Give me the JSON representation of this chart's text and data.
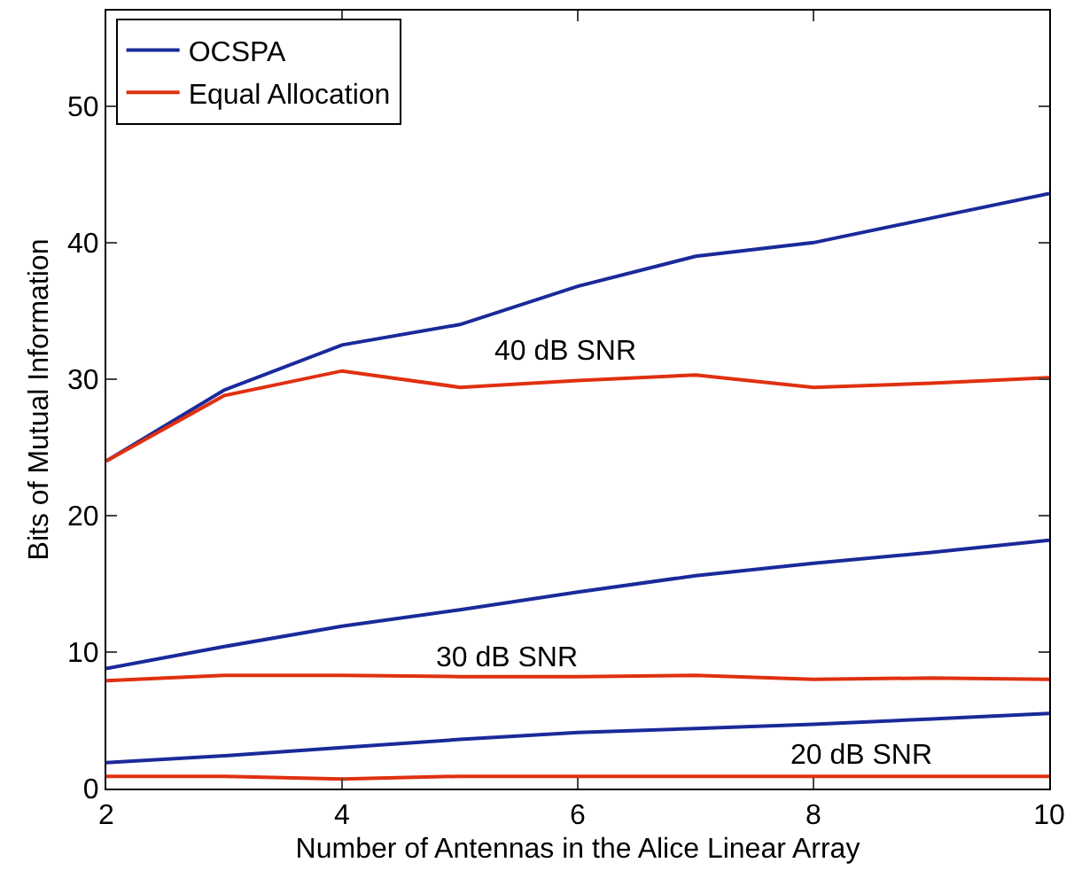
{
  "chart_data": {
    "type": "line",
    "xlabel": "Number of Antennas in the Alice Linear Array",
    "ylabel": "Bits of Mutual Information",
    "x": [
      2,
      3,
      4,
      5,
      6,
      7,
      8,
      9,
      10
    ],
    "xlim": [
      2,
      10
    ],
    "xticks": [
      2,
      4,
      6,
      8,
      10
    ],
    "ylim": [
      0,
      57
    ],
    "yticks": [
      0,
      10,
      20,
      30,
      40,
      50
    ],
    "grid": false,
    "legend": "top left",
    "marker": "none",
    "line_style": "solid",
    "series": [
      {
        "name": "OCSPA",
        "color": "#1a2a9a",
        "values": [
          24,
          29.2,
          32.5,
          34,
          36.8,
          39,
          40,
          41.8,
          43.6
        ]
      },
      {
        "name": "Equal Allocation",
        "color": "#e03010",
        "values": [
          24,
          28.8,
          30.6,
          29.4,
          29.9,
          30.3,
          29.4,
          29.7,
          30.1
        ]
      },
      {
        "color": "#1a2a9a",
        "values": [
          8.8,
          10.4,
          11.9,
          13.1,
          14.4,
          15.6,
          16.5,
          17.3,
          18.2
        ]
      },
      {
        "color": "#e03010",
        "values": [
          7.9,
          8.3,
          8.3,
          8.2,
          8.2,
          8.3,
          8.0,
          8.1,
          8.0
        ]
      },
      {
        "color": "#1a2a9a",
        "values": [
          1.9,
          2.4,
          3.0,
          3.6,
          4.1,
          4.4,
          4.7,
          5.1,
          5.5
        ]
      },
      {
        "color": "#e03010",
        "values": [
          0.9,
          0.9,
          0.7,
          0.9,
          0.9,
          0.9,
          0.9,
          0.9,
          0.9
        ]
      }
    ],
    "annotations": [
      {
        "text": "40 dB SNR",
        "x": 5.9,
        "y": 30.6
      },
      {
        "text": "30 dB SNR",
        "x": 5.4,
        "y": 8.2
      },
      {
        "text": "20 dB SNR",
        "x": 8.4,
        "y": 1.0
      }
    ]
  }
}
